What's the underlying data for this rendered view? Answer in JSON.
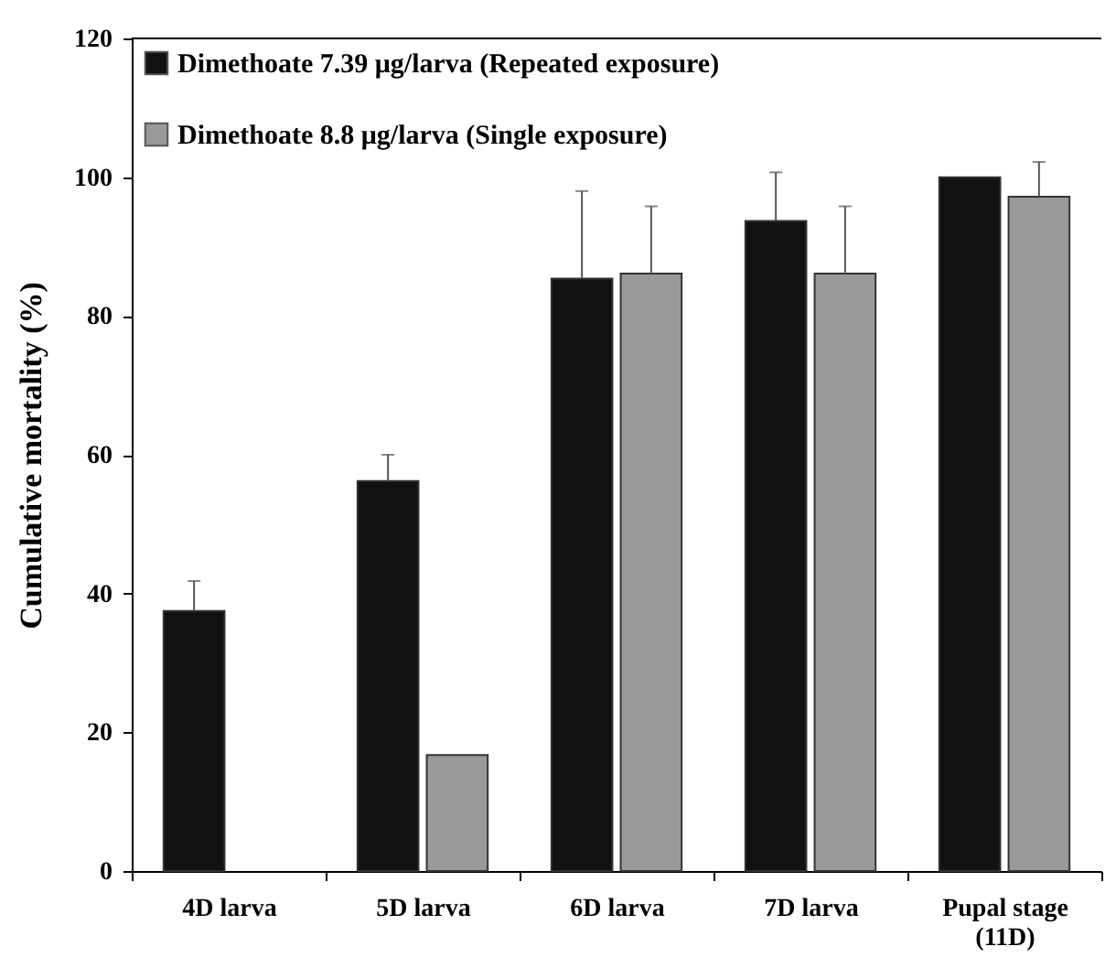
{
  "chart_data": {
    "type": "bar",
    "ylabel": "Cumulative mortality (%)",
    "categories": [
      "4D larva",
      "5D larva",
      "6D larva",
      "7D larva",
      "Pupal stage\n(11D)"
    ],
    "series": [
      {
        "name": "Dimethoate 7.39 μg/larva (Repeated exposure)",
        "color": "#111111",
        "values": [
          37.5,
          56.2,
          85.4,
          93.7,
          100
        ],
        "errors": [
          [
            37.5,
            41.8
          ],
          [
            56.2,
            60
          ],
          [
            85.4,
            98
          ],
          [
            93.7,
            100.7
          ],
          null
        ]
      },
      {
        "name": "Dimethoate 8.8 μg/larva (Single exposure)",
        "color": "#999999",
        "values": [
          null,
          16.7,
          86.1,
          86.1,
          97.2
        ],
        "errors": [
          null,
          null,
          [
            86.1,
            95.8
          ],
          [
            86.1,
            95.8
          ],
          [
            97.2,
            102.2
          ]
        ]
      }
    ],
    "ylim": [
      0,
      120
    ],
    "yticks": [
      0,
      20,
      40,
      60,
      80,
      100,
      120
    ],
    "grid": false,
    "legend": "top left"
  }
}
